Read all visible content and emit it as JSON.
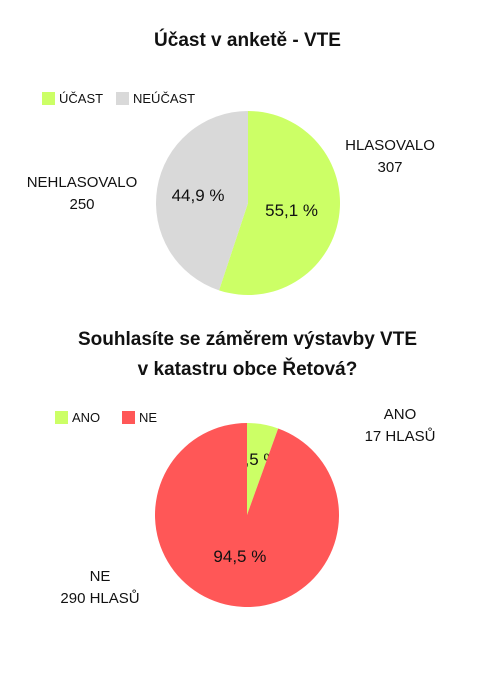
{
  "chart_data": [
    {
      "type": "pie",
      "title": "Účast v anketě - VTE",
      "legend": [
        "ÚČAST",
        "NEÚČAST"
      ],
      "slices": [
        {
          "name": "ÚČAST",
          "value": 55.1,
          "label": "55,1 %",
          "color": "#ccff66"
        },
        {
          "name": "NEÚČAST",
          "value": 44.9,
          "label": "44,9 %",
          "color": "#d9d9d9"
        }
      ],
      "annotations": [
        {
          "line1": "HLASOVALO",
          "line2": "307"
        },
        {
          "line1": "NEHLASOVALO",
          "line2": "250"
        }
      ],
      "legend_position": "top-left"
    },
    {
      "type": "pie",
      "title": [
        "Souhlasíte se záměrem výstavby VTE",
        "v katastru obce Řetová?"
      ],
      "legend": [
        "ANO",
        "NE"
      ],
      "slices": [
        {
          "name": "ANO",
          "value": 5.5,
          "label": "5,5 %",
          "color": "#ccff66"
        },
        {
          "name": "NE",
          "value": 94.5,
          "label": "94,5 %",
          "color": "#ff5757"
        }
      ],
      "annotations": [
        {
          "line1": "ANO",
          "line2": "17 HLASŮ"
        },
        {
          "line1": "NE",
          "line2": "290 HLASŮ"
        }
      ],
      "legend_position": "top-left"
    }
  ]
}
